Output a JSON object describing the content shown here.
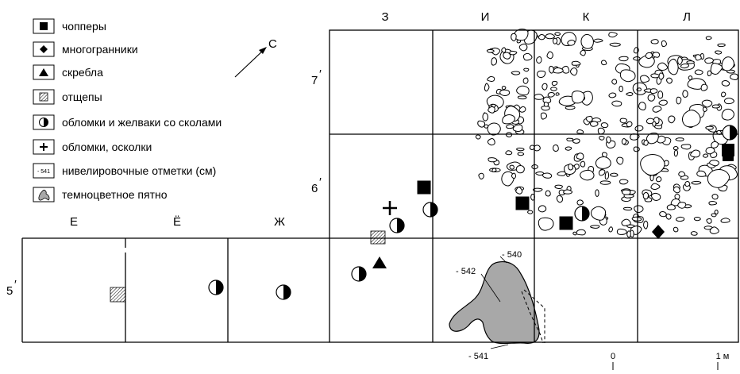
{
  "legend": [
    {
      "symbol": "square",
      "label": "чопперы"
    },
    {
      "symbol": "diamond",
      "label": "многогранники"
    },
    {
      "symbol": "triangle",
      "label": "скребла"
    },
    {
      "symbol": "hatched",
      "label": "отщепы"
    },
    {
      "symbol": "half-circle",
      "label": "обломки и желваки со сколами"
    },
    {
      "symbol": "plus",
      "label": "обломки, осколки"
    },
    {
      "symbol": "elevation",
      "label": "нивелировочные отметки (см)",
      "sample": "- 541"
    },
    {
      "symbol": "dark-spot",
      "label": "темноцветное пятно"
    }
  ],
  "north": {
    "label": "С"
  },
  "columns_top": [
    "З",
    "И",
    "К",
    "Л"
  ],
  "columns_bottom": [
    "Е",
    "Ё",
    "Ж"
  ],
  "rows": [
    "7",
    "6",
    "5"
  ],
  "row_prime": "′",
  "elevations": [
    "- 540",
    "- 542",
    "- 541"
  ],
  "scale": {
    "zero": "0",
    "one": "1 м"
  },
  "colors": {
    "ink": "#000000",
    "spot": "#a8a8a8",
    "paper": "#ffffff"
  }
}
